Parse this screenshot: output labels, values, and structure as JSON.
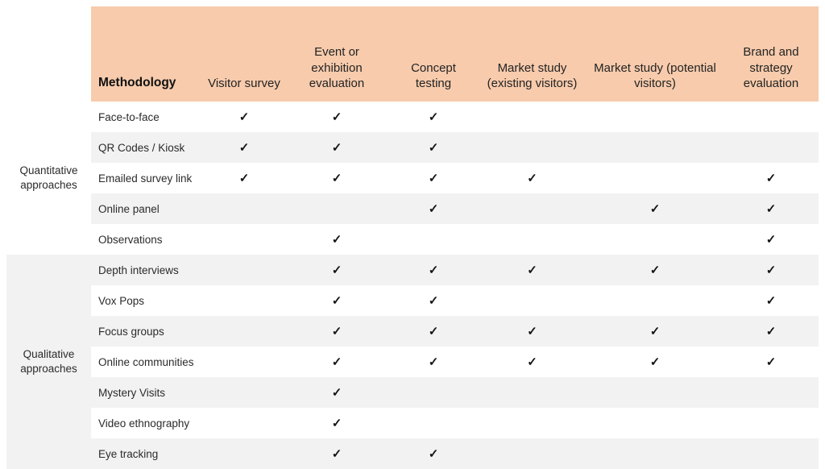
{
  "colors": {
    "header_bg": "#F7CBAC",
    "stripe_bg": "#F2F2F2",
    "text": "#2b2b2b"
  },
  "icons": {
    "check_glyph": "✓"
  },
  "chart_data": {
    "type": "table",
    "title": "",
    "corner_label": "Methodology",
    "columns": [
      "Visitor survey",
      "Event or exhibition evaluation",
      "Concept testing",
      "Market study (existing visitors)",
      "Market study (potential visitors)",
      "Brand and strategy evaluation"
    ],
    "groups": [
      {
        "label": "Quantitative approaches",
        "row_span": 5
      },
      {
        "label": "Qualitative approaches",
        "row_span": 7
      }
    ],
    "rows": [
      {
        "label": "Face-to-face",
        "checks": [
          "✓",
          "✓",
          "✓",
          "",
          "",
          ""
        ]
      },
      {
        "label": "QR Codes / Kiosk",
        "checks": [
          "✓",
          "✓",
          "✓",
          "",
          "",
          ""
        ]
      },
      {
        "label": "Emailed survey link",
        "checks": [
          "✓",
          "✓",
          "✓",
          "✓",
          "",
          "✓"
        ]
      },
      {
        "label": "Online panel",
        "checks": [
          "",
          "",
          "✓",
          "",
          "✓",
          "✓"
        ]
      },
      {
        "label": "Observations",
        "checks": [
          "",
          "✓",
          "",
          "",
          "",
          "✓"
        ]
      },
      {
        "label": "Depth interviews",
        "checks": [
          "",
          "✓",
          "✓",
          "✓",
          "✓",
          "✓"
        ]
      },
      {
        "label": "Vox Pops",
        "checks": [
          "",
          "✓",
          "✓",
          "",
          "",
          "✓"
        ]
      },
      {
        "label": "Focus groups",
        "checks": [
          "",
          "✓",
          "✓",
          "✓",
          "✓",
          "✓"
        ]
      },
      {
        "label": "Online communities",
        "checks": [
          "",
          "✓",
          "✓",
          "✓",
          "✓",
          "✓"
        ]
      },
      {
        "label": "Mystery Visits",
        "checks": [
          "",
          "✓",
          "",
          "",
          "",
          ""
        ]
      },
      {
        "label": "Video ethnography",
        "checks": [
          "",
          "✓",
          "",
          "",
          "",
          ""
        ]
      },
      {
        "label": "Eye tracking",
        "checks": [
          "",
          "✓",
          "✓",
          "",
          "",
          ""
        ]
      }
    ]
  }
}
